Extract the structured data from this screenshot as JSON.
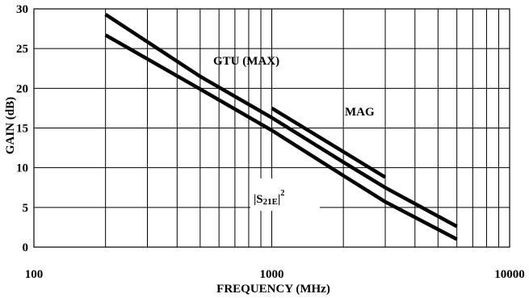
{
  "chart_data": {
    "type": "line",
    "xlabel": "FREQUENCY (MHz)",
    "ylabel": "GAIN (dB)",
    "xscale": "log",
    "xlim": [
      100,
      10000
    ],
    "ylim": [
      0,
      30
    ],
    "grid": true,
    "x_tick_labels": [
      "100",
      "1000",
      "10000"
    ],
    "y_tick_labels": [
      "0",
      "5",
      "10",
      "15",
      "20",
      "25",
      "30"
    ],
    "series": [
      {
        "name": "GTU (MAX)",
        "x": [
          200,
          500,
          1000,
          2000,
          3000,
          6000
        ],
        "y": [
          29.3,
          21.5,
          16.3,
          10.7,
          7.5,
          2.6
        ]
      },
      {
        "name": "MAG",
        "x": [
          1000,
          3000
        ],
        "y": [
          17.5,
          8.8
        ]
      },
      {
        "name": "|S21E|²",
        "label_parts": {
          "main": "|S",
          "sub": "21E",
          "after": "|",
          "sup": "2"
        },
        "x": [
          200,
          500,
          1000,
          2000,
          3000,
          6000
        ],
        "y": [
          26.7,
          19.9,
          14.7,
          9.0,
          5.7,
          1.0
        ]
      }
    ]
  }
}
